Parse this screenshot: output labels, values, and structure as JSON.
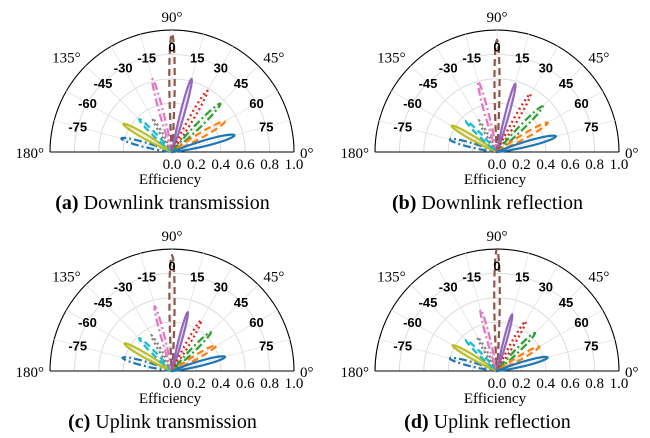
{
  "chart_data": [
    {
      "type": "polar-beam-pattern",
      "panel_label": "(a)",
      "caption": "Downlink transmission",
      "angle_ticks": [
        "0°",
        "45°",
        "90°",
        "135°",
        "180°"
      ],
      "radial_ticks": [
        "0.0",
        "0.2",
        "0.4",
        "0.6",
        "0.8",
        "1.0"
      ],
      "radial_label": "Efficiency",
      "radial_range": [
        0,
        1.0
      ],
      "angle_range_deg": [
        0,
        180
      ],
      "series": [
        {
          "name": "-75",
          "direction_deg": 165,
          "peak_efficiency": 0.43,
          "color": "#1f77b4",
          "dash": "dashdot"
        },
        {
          "name": "-60",
          "direction_deg": 150,
          "peak_efficiency": 0.46,
          "color": "#bcbd22",
          "dash": "solid"
        },
        {
          "name": "-45",
          "direction_deg": 135,
          "peak_efficiency": 0.38,
          "color": "#17becf",
          "dash": "dashed"
        },
        {
          "name": "-30",
          "direction_deg": 120,
          "peak_efficiency": 0.32,
          "color": "#7f7f7f",
          "dash": "dotted"
        },
        {
          "name": "-15",
          "direction_deg": 105,
          "peak_efficiency": 0.62,
          "color": "#e377c2",
          "dash": "dashdot"
        },
        {
          "name": "0",
          "direction_deg": 90,
          "peak_efficiency": 0.97,
          "color": "#8c564b",
          "dash": "dashed"
        },
        {
          "name": "15",
          "direction_deg": 75,
          "peak_efficiency": 0.62,
          "color": "#9467bd",
          "dash": "solid"
        },
        {
          "name": "30",
          "direction_deg": 60,
          "peak_efficiency": 0.58,
          "color": "#d62728",
          "dash": "dotted"
        },
        {
          "name": "45",
          "direction_deg": 45,
          "peak_efficiency": 0.56,
          "color": "#2ca02c",
          "dash": "dashdot"
        },
        {
          "name": "60",
          "direction_deg": 30,
          "peak_efficiency": 0.5,
          "color": "#ff7f0e",
          "dash": "dashed"
        },
        {
          "name": "75",
          "direction_deg": 15,
          "peak_efficiency": 0.53,
          "color": "#1f77b4",
          "dash": "solid"
        }
      ]
    },
    {
      "type": "polar-beam-pattern",
      "panel_label": "(b)",
      "caption": "Downlink reflection",
      "angle_ticks": [
        "0°",
        "45°",
        "90°",
        "135°",
        "180°"
      ],
      "radial_ticks": [
        "0.0",
        "0.2",
        "0.4",
        "0.6",
        "0.8",
        "1.0"
      ],
      "radial_label": "Efficiency",
      "radial_range": [
        0,
        1.0
      ],
      "angle_range_deg": [
        0,
        180
      ],
      "series": [
        {
          "name": "-75",
          "direction_deg": 165,
          "peak_efficiency": 0.4,
          "color": "#1f77b4",
          "dash": "dashdot"
        },
        {
          "name": "-60",
          "direction_deg": 150,
          "peak_efficiency": 0.43,
          "color": "#bcbd22",
          "dash": "solid"
        },
        {
          "name": "-45",
          "direction_deg": 135,
          "peak_efficiency": 0.36,
          "color": "#17becf",
          "dash": "dashed"
        },
        {
          "name": "-30",
          "direction_deg": 120,
          "peak_efficiency": 0.3,
          "color": "#7f7f7f",
          "dash": "dotted"
        },
        {
          "name": "-15",
          "direction_deg": 105,
          "peak_efficiency": 0.6,
          "color": "#e377c2",
          "dash": "dashdot"
        },
        {
          "name": "0",
          "direction_deg": 90,
          "peak_efficiency": 0.92,
          "color": "#8c564b",
          "dash": "dashed"
        },
        {
          "name": "15",
          "direction_deg": 75,
          "peak_efficiency": 0.58,
          "color": "#9467bd",
          "dash": "solid"
        },
        {
          "name": "30",
          "direction_deg": 60,
          "peak_efficiency": 0.55,
          "color": "#d62728",
          "dash": "dotted"
        },
        {
          "name": "45",
          "direction_deg": 45,
          "peak_efficiency": 0.53,
          "color": "#2ca02c",
          "dash": "dashdot"
        },
        {
          "name": "60",
          "direction_deg": 30,
          "peak_efficiency": 0.48,
          "color": "#ff7f0e",
          "dash": "dashed"
        },
        {
          "name": "75",
          "direction_deg": 15,
          "peak_efficiency": 0.5,
          "color": "#1f77b4",
          "dash": "solid"
        }
      ]
    },
    {
      "type": "polar-beam-pattern",
      "panel_label": "(c)",
      "caption": "Uplink transmission",
      "angle_ticks": [
        "0°",
        "45°",
        "90°",
        "135°",
        "180°"
      ],
      "radial_ticks": [
        "0.0",
        "0.2",
        "0.4",
        "0.6",
        "0.8",
        "1.0"
      ],
      "radial_label": "Efficiency",
      "radial_range": [
        0,
        1.0
      ],
      "angle_range_deg": [
        0,
        180
      ],
      "series": [
        {
          "name": "-75",
          "direction_deg": 165,
          "peak_efficiency": 0.42,
          "color": "#1f77b4",
          "dash": "dashdot"
        },
        {
          "name": "-60",
          "direction_deg": 150,
          "peak_efficiency": 0.45,
          "color": "#bcbd22",
          "dash": "solid"
        },
        {
          "name": "-45",
          "direction_deg": 135,
          "peak_efficiency": 0.38,
          "color": "#17becf",
          "dash": "dashed"
        },
        {
          "name": "-30",
          "direction_deg": 120,
          "peak_efficiency": 0.34,
          "color": "#7f7f7f",
          "dash": "dotted"
        },
        {
          "name": "-15",
          "direction_deg": 105,
          "peak_efficiency": 0.55,
          "color": "#e377c2",
          "dash": "dashdot"
        },
        {
          "name": "0",
          "direction_deg": 90,
          "peak_efficiency": 0.95,
          "color": "#8c564b",
          "dash": "dashed"
        },
        {
          "name": "15",
          "direction_deg": 75,
          "peak_efficiency": 0.5,
          "color": "#9467bd",
          "dash": "solid"
        },
        {
          "name": "30",
          "direction_deg": 60,
          "peak_efficiency": 0.48,
          "color": "#d62728",
          "dash": "dotted"
        },
        {
          "name": "45",
          "direction_deg": 45,
          "peak_efficiency": 0.45,
          "color": "#2ca02c",
          "dash": "dashdot"
        },
        {
          "name": "60",
          "direction_deg": 30,
          "peak_efficiency": 0.42,
          "color": "#ff7f0e",
          "dash": "dashed"
        },
        {
          "name": "75",
          "direction_deg": 15,
          "peak_efficiency": 0.45,
          "color": "#1f77b4",
          "dash": "solid"
        }
      ]
    },
    {
      "type": "polar-beam-pattern",
      "panel_label": "(d)",
      "caption": "Uplink reflection",
      "angle_ticks": [
        "0°",
        "45°",
        "90°",
        "135°",
        "180°"
      ],
      "radial_ticks": [
        "0.0",
        "0.2",
        "0.4",
        "0.6",
        "0.8",
        "1.0"
      ],
      "radial_label": "Efficiency",
      "radial_range": [
        0,
        1.0
      ],
      "angle_range_deg": [
        0,
        180
      ],
      "series": [
        {
          "name": "-75",
          "direction_deg": 165,
          "peak_efficiency": 0.4,
          "color": "#1f77b4",
          "dash": "dashdot"
        },
        {
          "name": "-60",
          "direction_deg": 150,
          "peak_efficiency": 0.42,
          "color": "#bcbd22",
          "dash": "solid"
        },
        {
          "name": "-45",
          "direction_deg": 135,
          "peak_efficiency": 0.36,
          "color": "#17becf",
          "dash": "dashed"
        },
        {
          "name": "-30",
          "direction_deg": 120,
          "peak_efficiency": 0.32,
          "color": "#7f7f7f",
          "dash": "dotted"
        },
        {
          "name": "-15",
          "direction_deg": 105,
          "peak_efficiency": 0.52,
          "color": "#e377c2",
          "dash": "dashdot"
        },
        {
          "name": "0",
          "direction_deg": 90,
          "peak_efficiency": 1.0,
          "color": "#8c564b",
          "dash": "dashed"
        },
        {
          "name": "15",
          "direction_deg": 75,
          "peak_efficiency": 0.48,
          "color": "#9467bd",
          "dash": "solid"
        },
        {
          "name": "30",
          "direction_deg": 60,
          "peak_efficiency": 0.47,
          "color": "#d62728",
          "dash": "dotted"
        },
        {
          "name": "45",
          "direction_deg": 45,
          "peak_efficiency": 0.44,
          "color": "#2ca02c",
          "dash": "dashdot"
        },
        {
          "name": "60",
          "direction_deg": 30,
          "peak_efficiency": 0.4,
          "color": "#ff7f0e",
          "dash": "dashed"
        },
        {
          "name": "75",
          "direction_deg": 15,
          "peak_efficiency": 0.43,
          "color": "#1f77b4",
          "dash": "solid"
        }
      ]
    }
  ]
}
